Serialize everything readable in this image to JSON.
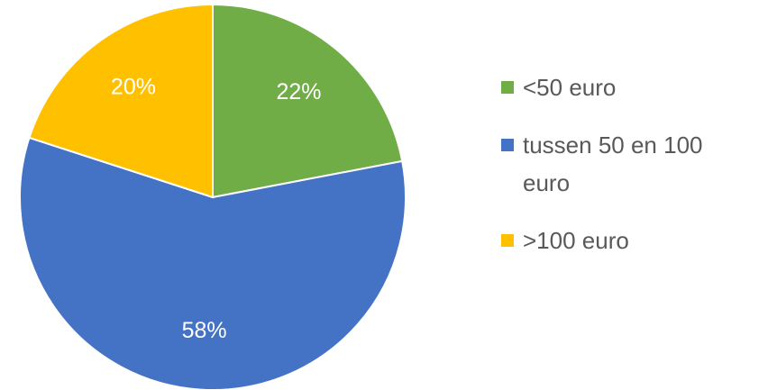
{
  "chart_data": {
    "type": "pie",
    "categories": [
      "<50 euro",
      "tussen 50 en 100 euro",
      ">100 euro"
    ],
    "values": [
      22,
      58,
      20
    ],
    "value_labels": [
      "22%",
      "58%",
      "20%"
    ],
    "colors": [
      "#70ad47",
      "#4472c4",
      "#ffc000"
    ],
    "legend": "right"
  }
}
